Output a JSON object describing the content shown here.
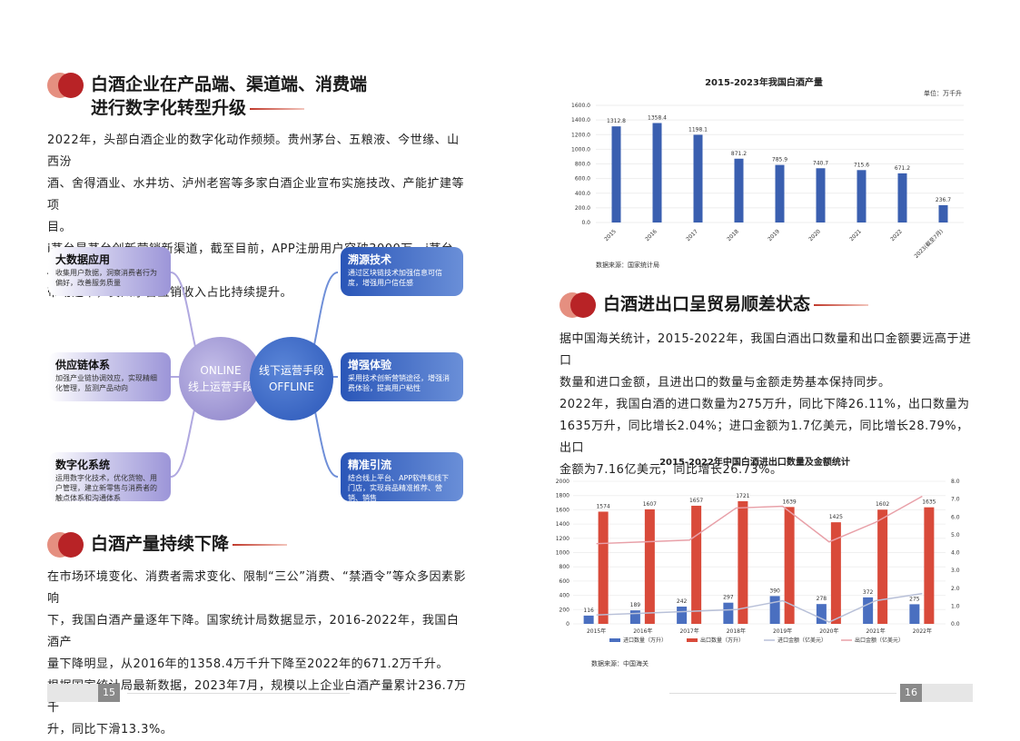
{
  "left": {
    "section1": {
      "title_line1": "白酒企业在产品端、渠道端、消费端",
      "title_line2": "进行数字化转型升级"
    },
    "para1": [
      "2022年，头部白酒企业的数字化动作频频。贵州茅台、五粮液、今世缘、山西汾",
      "酒、舍得酒业、水井坊、泸州老窖等多家白酒企业宣布实施技改、产能扩建等项",
      "目。",
      "i茅台是茅台创新营销新渠道，截至目前，APP注册用户突破3000万。i茅台APP",
      "带动之下，贵州茅台直销收入占比持续提升。"
    ],
    "mindmap": {
      "online_line1": "ONLINE",
      "online_line2": "线上运营手段",
      "offline_line1": "线下运营手段",
      "offline_line2": "OFFLINE",
      "left_nodes": [
        {
          "title": "大数据应用",
          "desc": "收集用户数据，洞察消费者行为偏好，改善服务质量"
        },
        {
          "title": "供应链体系",
          "desc": "加强产业链协调效应，实现精细化管理，监测产品动向"
        },
        {
          "title": "数字化系统",
          "desc": "运用数字化技术，优化货物、用户管理，建立新零售与消费者的触点体系和沟通体系"
        }
      ],
      "right_nodes": [
        {
          "title": "溯源技术",
          "desc": "通过区块链技术加强信息可信度，增强用户信任感"
        },
        {
          "title": "增强体验",
          "desc": "采用技术创新营销途径，增强消费体验，提高用户粘性"
        },
        {
          "title": "精准引流",
          "desc": "结合线上平台、APP软件和线下门店，实现商品精准推荐、营销、销售"
        }
      ]
    },
    "section2": {
      "title": "白酒产量持续下降"
    },
    "para2": [
      "在市场环境变化、消费者需求变化、限制“三公”消费、“禁酒令”等众多因素影响",
      "下，我国白酒产量逐年下降。国家统计局数据显示，2016-2022年，我国白酒产",
      "量下降明显，从2016年的1358.4万千升下降至2022年的671.2万千升。",
      "根据国家统计局最新数据，2023年7月，规模以上企业白酒产量累计236.7万千",
      "升，同比下滑13.3%。"
    ],
    "page_number": "15"
  },
  "right": {
    "section3": {
      "title": "白酒进出口呈贸易顺差状态"
    },
    "para3": [
      "据中国海关统计，2015-2022年，我国白酒出口数量和出口金额要远高于进口",
      "数量和进口金额，且进出口的数量与金额走势基本保持同步。",
      "2022年，我国白酒的进口数量为275万升，同比下降26.11%，出口数量为",
      "1635万升，同比增长2.04%；进口金额为1.7亿美元，同比增长28.79%，出口",
      "金额为7.16亿美元，同比增长26.73%。"
    ],
    "page_number": "16"
  },
  "chart_data": [
    {
      "type": "bar",
      "title": "2015-2023年我国白酒产量",
      "unit": "单位：万千升",
      "source": "数据来源：国家统计局",
      "categories": [
        "2015",
        "2016",
        "2017",
        "2018",
        "2019",
        "2020",
        "2021",
        "2022",
        "2023(截至7月)"
      ],
      "values": [
        1312.8,
        1358.4,
        1198.1,
        871.2,
        785.9,
        740.7,
        715.6,
        671.2,
        236.7
      ],
      "ylim": [
        0,
        1600
      ],
      "yticks": [
        "0.0",
        "200.0",
        "400.0",
        "600.0",
        "800.0",
        "1000.0",
        "1200.0",
        "1400.0",
        "1600.0"
      ],
      "color": "#3a5fb0"
    },
    {
      "type": "bar+line",
      "title": "2015-2022年中国白酒进出口数量及金额统计",
      "source": "数据来源：中国海关",
      "categories": [
        "2015年",
        "2016年",
        "2017年",
        "2018年",
        "2019年",
        "2020年",
        "2021年",
        "2022年"
      ],
      "ylim": [
        0,
        2000
      ],
      "y2lim": [
        0,
        8
      ],
      "yticks": [
        "0",
        "200",
        "400",
        "600",
        "800",
        "1000",
        "1200",
        "1400",
        "1600",
        "1800",
        "2000"
      ],
      "y2ticks": [
        "0.0",
        "1.0",
        "2.0",
        "3.0",
        "4.0",
        "5.0",
        "6.0",
        "7.0",
        "8.0"
      ],
      "series": [
        {
          "name": "进口数量（万升）",
          "kind": "bar",
          "values": [
            116,
            189,
            242,
            297,
            390,
            278,
            372,
            275
          ],
          "color": "#4a6fc0"
        },
        {
          "name": "出口数量（万升）",
          "kind": "bar",
          "values": [
            1574,
            1607,
            1657,
            1721,
            1639,
            1425,
            1602,
            1635
          ],
          "color": "#d94a3a"
        },
        {
          "name": "进口金额（亿美元）",
          "kind": "line",
          "values": [
            0.5,
            0.6,
            0.7,
            0.8,
            1.3,
            0.1,
            1.3,
            1.7
          ],
          "color": "#b8c0d8"
        },
        {
          "name": "出口金额（亿美元）",
          "kind": "line",
          "values": [
            4.5,
            4.6,
            4.7,
            6.5,
            6.6,
            4.6,
            5.7,
            7.16
          ],
          "color": "#e8a0a8"
        }
      ]
    }
  ]
}
